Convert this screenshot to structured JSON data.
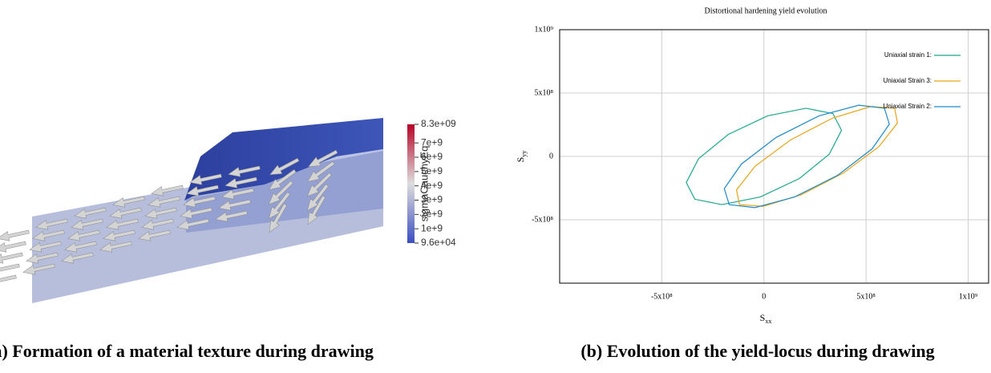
{
  "left_panel": {
    "caption": "(a) Formation of a material texture during drawing",
    "colorbar": {
      "title": "sigmaCauchyEq",
      "range": [
        96000,
        8300000000
      ],
      "ticks": [
        {
          "value": 8300000000,
          "label": "8.3e+09"
        },
        {
          "value": 7000000000,
          "label": "7e+9"
        },
        {
          "value": 6000000000,
          "label": "6e+9"
        },
        {
          "value": 5000000000,
          "label": "5e+9"
        },
        {
          "value": 4000000000,
          "label": "4e+9"
        },
        {
          "value": 3000000000,
          "label": "3e+9"
        },
        {
          "value": 2000000000,
          "label": "2e+9"
        },
        {
          "value": 1000000000,
          "label": "1e+9"
        },
        {
          "value": 96000,
          "label": "9.6e+04"
        }
      ]
    }
  },
  "right_caption": "(b) Evolution of the yield-locus during drawing",
  "chart_data": {
    "type": "line",
    "title": "Distortional hardening yield evolution",
    "x_label": {
      "text": "S",
      "sub": "xx"
    },
    "y_label": {
      "text": "S",
      "sub": "yy"
    },
    "xlim": [
      -1000000000,
      1100000000
    ],
    "ylim": [
      -1000000000,
      1000000000
    ],
    "xticks": [
      {
        "value": -500000000,
        "label": "-5x10⁸"
      },
      0,
      {
        "value": 500000000,
        "label": "5x10⁸"
      },
      {
        "value": 1000000000,
        "label": "1x10⁹"
      }
    ],
    "yticks": [
      {
        "value": -500000000,
        "label": "-5x10⁸"
      },
      0,
      {
        "value": 500000000,
        "label": "5x10⁸"
      },
      {
        "value": 1000000000,
        "label": "1x10⁹"
      }
    ],
    "grid": true,
    "legend": "upper right",
    "series": [
      {
        "name": "Uniaxial strain  1:",
        "color": "#1aa88a",
        "x": [
          338000000,
          206000000,
          18000000,
          -174000000,
          -320000000,
          -380000000,
          -338000000,
          -206000000,
          -18000000,
          174000000,
          320000000,
          380000000
        ],
        "values": [
          338000000,
          380000000,
          320000000,
          174000000,
          -18000000,
          -206000000,
          -338000000,
          -380000000,
          -320000000,
          -174000000,
          18000000,
          206000000
        ]
      },
      {
        "name": "Uniaxial Strain 3:",
        "color": "#e8a317",
        "x": [
          640000000,
          524000000,
          337000000,
          130000000,
          -43000000,
          -134000000,
          -120000000,
          -4000000,
          183000000,
          390000000,
          563000000,
          654000000
        ],
        "values": [
          380000000,
          394000000,
          303000000,
          130000000,
          -77000000,
          -264000000,
          -380000000,
          -394000000,
          -303000000,
          -130000000,
          77000000,
          264000000
        ]
      },
      {
        "name": "Uniaxial Strain 2:",
        "color": "#1f8ac8",
        "x": [
          590000000,
          464000000,
          270000000,
          60000000,
          -110000000,
          -194000000,
          -170000000,
          -44000000,
          150000000,
          360000000,
          530000000,
          614000000
        ],
        "values": [
          380000000,
          404000000,
          320000000,
          150000000,
          -60000000,
          -254000000,
          -380000000,
          -404000000,
          -320000000,
          -150000000,
          60000000,
          254000000
        ]
      }
    ]
  }
}
